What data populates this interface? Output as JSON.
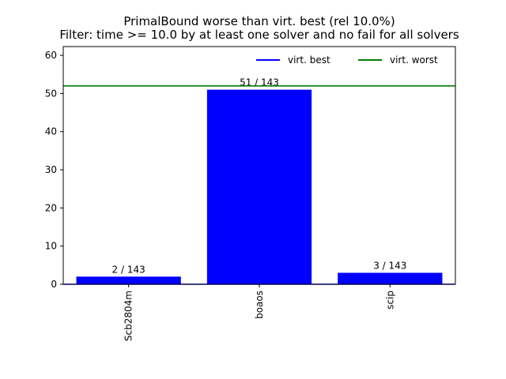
{
  "chart_data": {
    "type": "bar",
    "title_lines": [
      "PrimalBound worse than virt. best (rel 10.0%)",
      "Filter: time >= 10.0 by at least one solver and no fail for all solvers"
    ],
    "categories": [
      "Scb2804m",
      "boaos",
      "scip"
    ],
    "values": [
      2,
      51,
      3
    ],
    "bar_labels": [
      "2 / 143",
      "51 / 143",
      "3 / 143"
    ],
    "ylim": [
      0,
      62.3
    ],
    "yticks": [
      0,
      10,
      20,
      30,
      40,
      50,
      60
    ],
    "xlabel": "",
    "ylabel": "",
    "bar_color": "#0000ff",
    "reference_lines": [
      {
        "name": "virt. best",
        "value": 0,
        "color": "#0000ff"
      },
      {
        "name": "virt. worst",
        "value": 52,
        "color": "#008000"
      }
    ],
    "legend": {
      "position": "top-right",
      "entries": [
        {
          "label": "virt. best",
          "color": "#0000ff"
        },
        {
          "label": "virt. worst",
          "color": "#008000"
        }
      ]
    }
  }
}
